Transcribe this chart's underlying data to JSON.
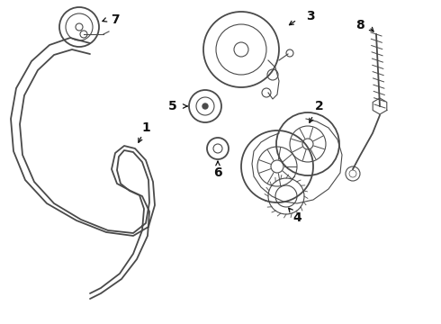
{
  "bg_color": "#ffffff",
  "line_color": "#4a4a4a",
  "dark_color": "#111111",
  "fig_width": 4.9,
  "fig_height": 3.6,
  "dpi": 100
}
